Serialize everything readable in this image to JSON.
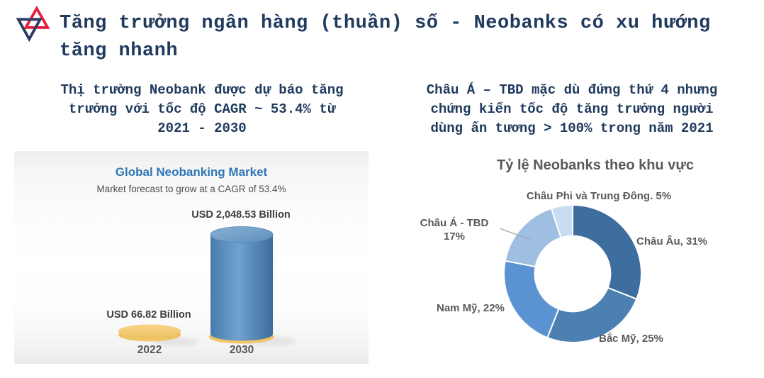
{
  "slide": {
    "background": "#ffffff",
    "accent_navy": "#203a5e"
  },
  "header": {
    "logo_icon": "overlapping-triangles",
    "logo_colors": {
      "red": "#e81c3f",
      "navy": "#2e3c63"
    },
    "title": "Tăng trưởng ngân hàng (thuần) số - Neobanks có xu hướng\ntăng nhanh"
  },
  "insights": {
    "left": "Thị trường Neobank được dự báo tăng\ntrưởng với tốc độ CAGR ~ 53.4% từ\n2021 - 2030",
    "right": "Châu Á – TBD mặc dù đứng thứ 4 nhưng\nchứng kiến tốc độ tăng trưởng người\ndùng ấn tương > 100% trong năm 2021"
  },
  "chart_data": [
    {
      "type": "bar",
      "style": "3d-cylinder",
      "title": "Global Neobanking Market",
      "subtitle": "Market forecast to grow at a CAGR of 53.4%",
      "categories": [
        "2022",
        "2030"
      ],
      "values": [
        66.82,
        2048.53
      ],
      "unit": "USD Billion",
      "value_labels": [
        "USD 66.82 Billion",
        "USD 2,048.53 Billion"
      ],
      "bar_colors": [
        "#eec264",
        "#5286b7"
      ],
      "title_color": "#2e74b5"
    },
    {
      "type": "pie",
      "subtype": "donut",
      "title": "Tỷ lệ Neobanks theo khu vực",
      "labels": [
        "Châu Âu",
        "Bắc Mỹ",
        "Nam Mỹ",
        "Châu Á - TBD",
        "Châu Phi và Trung Đông"
      ],
      "values": [
        31,
        25,
        22,
        17,
        5
      ],
      "colors": [
        "#3d6e9e",
        "#4c80b0",
        "#5b93d2",
        "#9fbfe2",
        "#cadcf0"
      ],
      "label_texts": [
        "Châu Âu, 31%",
        "Bắc Mỹ, 25%",
        "Nam Mỹ, 22%",
        "Châu Á - TBD\n17%",
        "Châu Phi và Trung Đông. 5%"
      ],
      "start_angle_deg": 0,
      "clockwise": true,
      "hole_ratio": 0.55,
      "legend_position": "data-labels-around-chart"
    }
  ]
}
